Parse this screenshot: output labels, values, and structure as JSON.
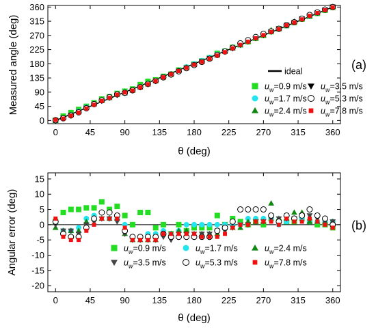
{
  "chart_data": [
    {
      "type": "scatter",
      "panel_label": "(a)",
      "xlabel": "θ (deg)",
      "ylabel": "Measured angle (deg)",
      "xlim": [
        -10,
        370
      ],
      "ylim": [
        -10,
        365
      ],
      "xticks": [
        "0",
        "45",
        "90",
        "135",
        "180",
        "225",
        "270",
        "315",
        "360"
      ],
      "yticks": [
        "0",
        "45",
        "90",
        "135",
        "180",
        "225",
        "270",
        "315",
        "360"
      ],
      "legend_placement": "bottom-right",
      "ideal_label": "ideal",
      "x": [
        0,
        10,
        20,
        30,
        40,
        50,
        60,
        70,
        80,
        90,
        100,
        110,
        120,
        130,
        140,
        150,
        160,
        170,
        180,
        190,
        200,
        210,
        220,
        230,
        240,
        250,
        260,
        270,
        280,
        290,
        300,
        310,
        320,
        330,
        340,
        350,
        360
      ],
      "series": [
        {
          "name": "uw=0.9 m/s",
          "marker": "square",
          "color": "#22dd22",
          "values": [
            1,
            14,
            25,
            35,
            45,
            56,
            68,
            75,
            86,
            93,
            100,
            114,
            124,
            129,
            140,
            147,
            160,
            168,
            179,
            189,
            199,
            213,
            220,
            232,
            241,
            250,
            261,
            270,
            282,
            291,
            301,
            311,
            322,
            331,
            340,
            350,
            359
          ]
        },
        {
          "name": "uw=1.7 m/s",
          "marker": "circle",
          "color": "#22e5f0",
          "values": [
            1,
            8,
            18,
            29,
            42,
            53,
            64,
            72,
            82,
            90,
            96,
            106,
            117,
            127,
            138,
            147,
            158,
            170,
            180,
            190,
            200,
            210,
            220,
            230,
            240,
            252,
            262,
            272,
            282,
            290,
            301,
            312,
            322,
            331,
            341,
            351,
            361
          ]
        },
        {
          "name": "uw=2.4 m/s",
          "marker": "triangle-up",
          "color": "#118811",
          "values": [
            -1,
            8,
            18,
            28,
            41,
            52,
            62,
            72,
            82,
            87,
            95,
            105,
            115,
            125,
            137,
            147,
            158,
            168,
            177,
            187,
            197,
            207,
            219,
            229,
            239,
            251,
            261,
            271,
            287,
            292,
            302,
            314,
            324,
            331,
            341,
            351,
            361
          ]
        },
        {
          "name": "uw=3.5 m/s",
          "marker": "triangle-down",
          "color": "#000000",
          "values": [
            0,
            8,
            18,
            27,
            40,
            51,
            62,
            72,
            81,
            87,
            95,
            105,
            115,
            125,
            136,
            145,
            157,
            167,
            177,
            187,
            197,
            208,
            218,
            229,
            240,
            250,
            261,
            271,
            282,
            292,
            302,
            312,
            323,
            333,
            342,
            351,
            361
          ]
        },
        {
          "name": "uw=5.3 m/s",
          "marker": "circle-open",
          "color": "#000000",
          "values": [
            1,
            7,
            16,
            26,
            39,
            52,
            64,
            74,
            83,
            88,
            96,
            106,
            116,
            126,
            137,
            146,
            156,
            166,
            176,
            186,
            196,
            208,
            219,
            231,
            245,
            255,
            265,
            275,
            283,
            291,
            303,
            312,
            323,
            335,
            343,
            352,
            360
          ]
        },
        {
          "name": "uw=7.8 m/s",
          "marker": "square-small",
          "color": "#ee1111",
          "values": [
            2,
            6,
            15,
            25,
            38,
            50,
            62,
            72,
            82,
            89,
            95,
            105,
            115,
            125,
            137,
            147,
            157,
            167,
            177,
            186,
            196,
            206,
            217,
            229,
            240,
            250,
            261,
            271,
            281,
            290,
            302,
            311,
            321,
            332,
            341,
            350,
            359
          ]
        }
      ]
    },
    {
      "type": "scatter",
      "panel_label": "(b)",
      "xlabel": "θ (deg)",
      "ylabel": "Angular error (deg)",
      "xlim": [
        -10,
        370
      ],
      "ylim": [
        -22,
        17
      ],
      "xticks": [
        "0",
        "45",
        "90",
        "135",
        "180",
        "225",
        "270",
        "315",
        "360"
      ],
      "yticks": [
        "-20",
        "-15",
        "-10",
        "-5",
        "0",
        "5",
        "10",
        "15"
      ],
      "legend_placement": "bottom",
      "x": [
        0,
        10,
        20,
        30,
        40,
        50,
        60,
        70,
        80,
        90,
        100,
        110,
        120,
        130,
        140,
        150,
        160,
        170,
        180,
        190,
        200,
        210,
        220,
        230,
        240,
        250,
        260,
        270,
        280,
        290,
        300,
        310,
        320,
        330,
        340,
        350,
        360
      ],
      "series": [
        {
          "name": "uw=0.9 m/s",
          "marker": "square",
          "color": "#22dd22",
          "values": [
            1,
            4,
            5,
            5,
            5.5,
            5.5,
            7.5,
            5,
            6,
            3,
            0,
            4,
            4,
            -1,
            0,
            -3,
            0,
            -2,
            -1,
            -1,
            -1,
            3,
            0,
            2,
            1,
            0,
            1,
            0,
            2,
            1,
            1,
            1,
            2,
            1,
            0,
            0,
            -1
          ]
        },
        {
          "name": "uw=1.7 m/s",
          "marker": "circle",
          "color": "#22e5f0",
          "values": [
            1,
            -2,
            -2,
            -1,
            2,
            3,
            4,
            2,
            2,
            0,
            -4,
            -4,
            -3,
            -3,
            -2,
            -3,
            -2,
            0,
            0,
            0,
            0,
            0,
            0,
            0,
            0,
            2,
            2,
            2,
            2,
            0,
            1,
            2,
            2,
            1,
            1,
            1,
            1
          ]
        },
        {
          "name": "uw=2.4 m/s",
          "marker": "triangle-up",
          "color": "#118811",
          "values": [
            -1,
            -2,
            -2,
            -2,
            1,
            2,
            2,
            2,
            2,
            -3,
            -5,
            -5,
            -5,
            -5,
            -3,
            -3,
            -2,
            -2,
            -3,
            -3,
            -3,
            -3,
            -1,
            -1,
            -1,
            1,
            1,
            1,
            7,
            2,
            2,
            4,
            4,
            1,
            1,
            1,
            1
          ]
        },
        {
          "name": "uw=3.5 m/s",
          "marker": "triangle-down",
          "color": "#444444",
          "values": [
            0,
            -2,
            -2,
            -3,
            0,
            1,
            2,
            2,
            1,
            -3,
            -5,
            -5,
            -5,
            -5,
            -4,
            -5,
            -3,
            -3,
            -3,
            -3,
            -3,
            -2,
            -2,
            -1,
            0,
            0,
            1,
            1,
            2,
            2,
            2,
            2,
            3,
            3,
            2,
            1,
            1
          ]
        },
        {
          "name": "uw=5.3 m/s",
          "marker": "circle-open",
          "color": "#000000",
          "values": [
            1,
            -3,
            -4,
            -4,
            -1,
            2,
            4,
            4,
            3,
            -2,
            -4,
            -4,
            -4,
            -4,
            -3,
            -4,
            -4,
            -4,
            -4,
            -4,
            -4,
            -2,
            -1,
            1,
            5,
            5,
            5,
            5,
            3,
            1,
            3,
            2,
            3,
            5,
            3,
            2,
            0
          ]
        },
        {
          "name": "uw=7.8 m/s",
          "marker": "square-small",
          "color": "#ee1111",
          "values": [
            2,
            -4,
            -5,
            -5,
            -2,
            0,
            2,
            2,
            2,
            -1,
            -5,
            -5,
            -5,
            -5,
            -3,
            -3,
            -3,
            -3,
            -3,
            -4,
            -4,
            -4,
            -3,
            -1,
            0,
            0,
            1,
            1,
            1,
            0,
            2,
            1,
            1,
            2,
            1,
            0,
            -1
          ]
        }
      ]
    }
  ]
}
